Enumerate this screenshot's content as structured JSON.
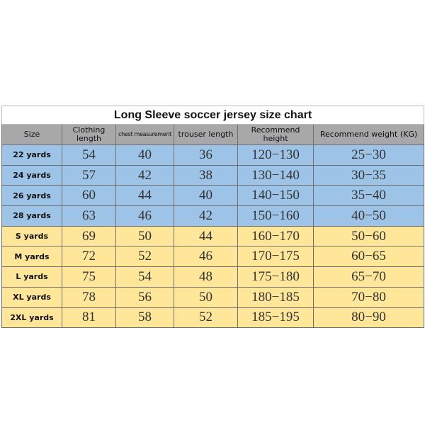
{
  "title": "Long Sleeve soccer jersey size chart",
  "columns": [
    "Size",
    "Clothing length",
    "chest measurement",
    "trouser length",
    "Recommend height",
    "Recommend weight (KG)"
  ],
  "colors": {
    "header": "#a8a8a8",
    "kids_rows": "#9dc3e6",
    "adult_rows": "#ffe699"
  },
  "rows": [
    {
      "group": "blue",
      "cells": [
        "22 yards",
        "54",
        "40",
        "36",
        "120-130",
        "25-30"
      ]
    },
    {
      "group": "blue",
      "cells": [
        "24 yards",
        "57",
        "42",
        "38",
        "130-140",
        "30-35"
      ]
    },
    {
      "group": "blue",
      "cells": [
        "26 yards",
        "60",
        "44",
        "40",
        "140-150",
        "35-40"
      ]
    },
    {
      "group": "blue",
      "cells": [
        "28 yards",
        "63",
        "46",
        "42",
        "150-160",
        "40-50"
      ]
    },
    {
      "group": "yellow",
      "cells": [
        "S yards",
        "69",
        "50",
        "44",
        "160-170",
        "50-60"
      ]
    },
    {
      "group": "yellow",
      "cells": [
        "M yards",
        "72",
        "52",
        "46",
        "170-175",
        "60-65"
      ]
    },
    {
      "group": "yellow",
      "cells": [
        "L yards",
        "75",
        "54",
        "48",
        "175-180",
        "65-70"
      ]
    },
    {
      "group": "yellow",
      "cells": [
        "XL yards",
        "78",
        "56",
        "50",
        "180-185",
        "70-80"
      ]
    },
    {
      "group": "yellow",
      "cells": [
        "2XL yards",
        "81",
        "58",
        "52",
        "185-195",
        "80-90"
      ]
    }
  ]
}
